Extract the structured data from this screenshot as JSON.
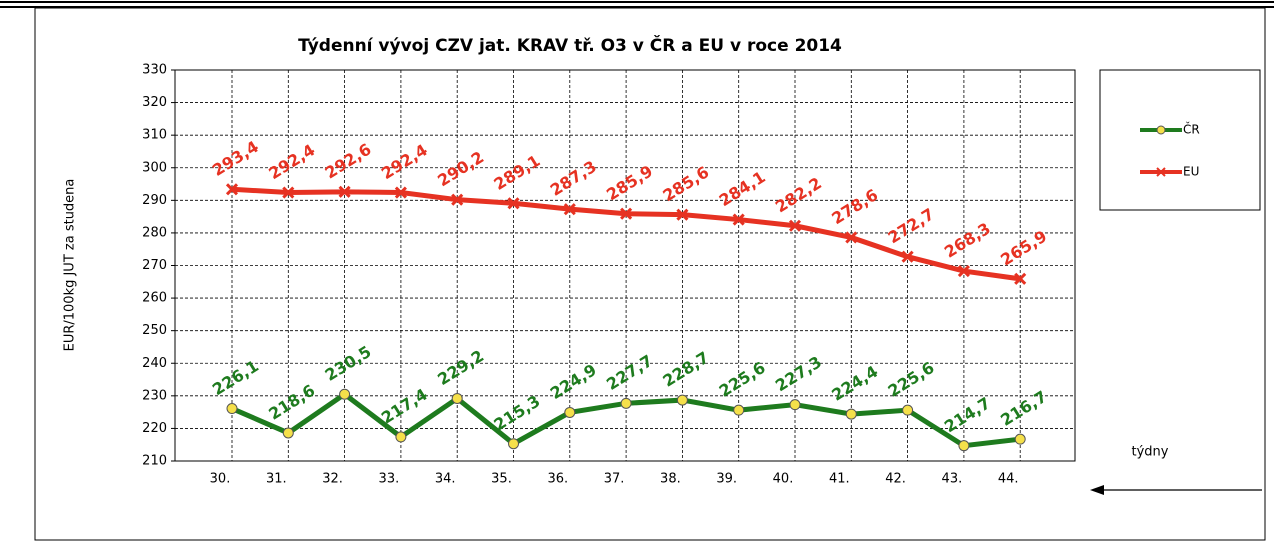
{
  "chart_data": {
    "type": "line",
    "title": "Týdenní vývoj CZV jat. KRAV tř. O3  v ČR a EU v roce 2014",
    "y_label": "EUR/100kg  JUT za studena",
    "x_annotation": "týdny",
    "categories": [
      "30.",
      "31.",
      "32.",
      "33.",
      "34.",
      "35.",
      "36.",
      "37.",
      "38.",
      "39.",
      "40.",
      "41.",
      "42.",
      "43.",
      "44."
    ],
    "series": [
      {
        "name": "ČR",
        "color": "#1e7b1e",
        "marker_color": "#f5e04a",
        "values": [
          226.1,
          218.6,
          230.5,
          217.4,
          229.2,
          215.3,
          224.9,
          227.7,
          228.7,
          225.6,
          227.3,
          224.4,
          225.6,
          214.7,
          216.7
        ],
        "value_labels": [
          "226,1",
          "218,6",
          "230,5",
          "217,4",
          "229,2",
          "215,3",
          "224,9",
          "227,7",
          "228,7",
          "225,6",
          "227,3",
          "224,4",
          "225,6",
          "214,7",
          "216,7"
        ]
      },
      {
        "name": "EU",
        "color": "#e63222",
        "values": [
          293.4,
          292.4,
          292.6,
          292.4,
          290.2,
          289.1,
          287.3,
          285.9,
          285.6,
          284.1,
          282.2,
          278.6,
          272.7,
          268.3,
          265.9
        ],
        "value_labels": [
          "293,4",
          "292,4",
          "292,6",
          "292,4",
          "290,2",
          "289,1",
          "287,3",
          "285,9",
          "285,6",
          "284,1",
          "282,2",
          "278,6",
          "272,7",
          "268,3",
          "265,9"
        ]
      }
    ],
    "ylim": [
      210,
      330
    ],
    "yticks": [
      210,
      220,
      230,
      240,
      250,
      260,
      270,
      280,
      290,
      300,
      310,
      320,
      330
    ],
    "grid": true,
    "legend": "right"
  }
}
